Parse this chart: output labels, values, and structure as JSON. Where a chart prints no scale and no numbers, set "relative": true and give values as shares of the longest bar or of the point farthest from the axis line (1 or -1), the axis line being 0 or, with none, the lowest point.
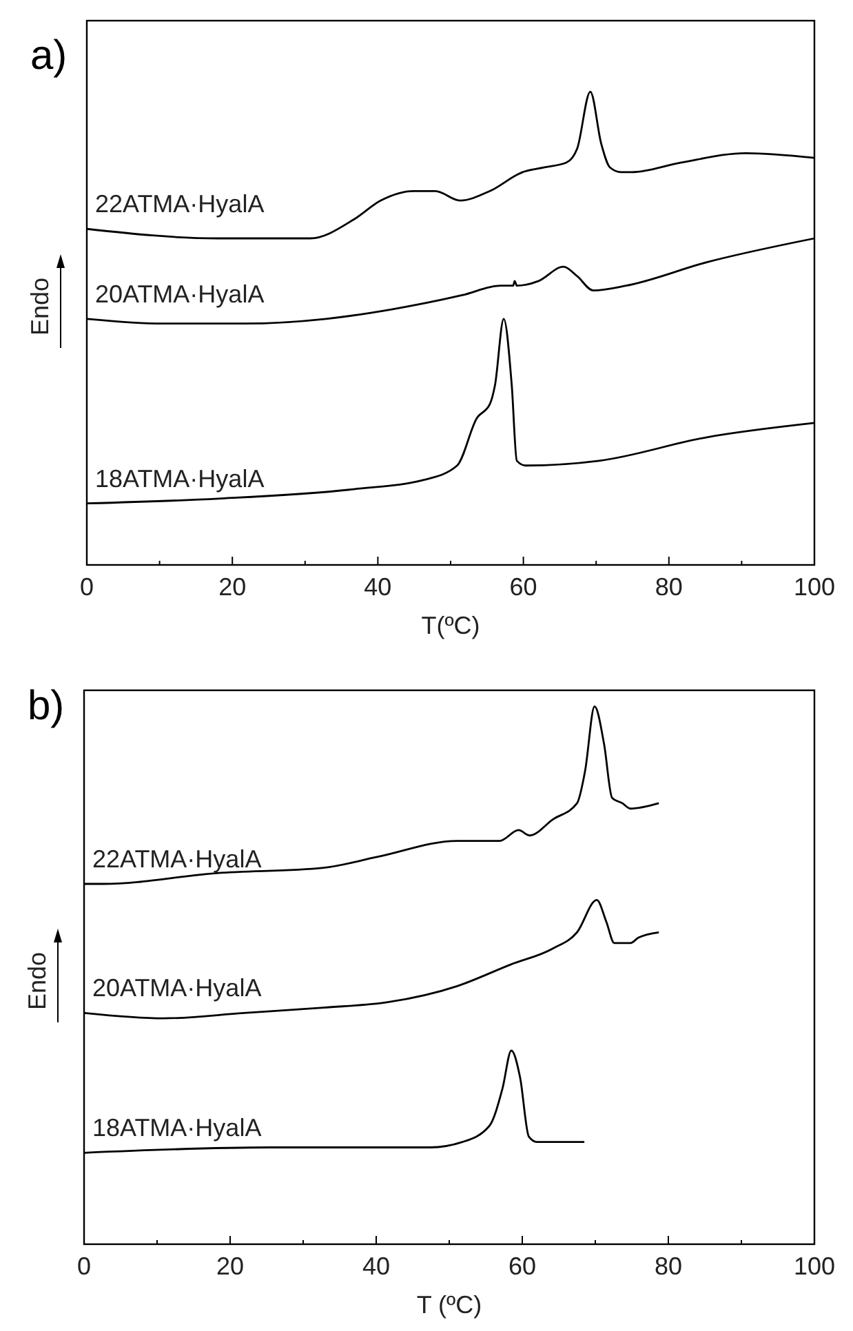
{
  "chart_data": [
    {
      "type": "line",
      "title": "a)",
      "xlabel": "T(ºC)",
      "ylabel": "Endo",
      "relative": true,
      "xlim": [
        0,
        100
      ],
      "xticks": [
        0,
        {
          "value": 10,
          "label": null
        },
        20,
        {
          "value": 30,
          "label": null
        },
        40,
        {
          "value": 50,
          "label": null
        },
        60,
        {
          "value": 70,
          "label": null
        },
        80,
        {
          "value": 90,
          "label": null
        },
        100
      ],
      "series": [
        {
          "name": "22ATMA·HyalA",
          "color": "#000000",
          "x": [
            0,
            18,
            30.7,
            36.7,
            40.4,
            44.9,
            47.9,
            51.3,
            55.4,
            59.9,
            62.9,
            65.9,
            67.4,
            69.2,
            70.7,
            71.9,
            73.4,
            74.9,
            81.6,
            90.6,
            100
          ],
          "values": [
            0.71,
            0.69,
            0.69,
            0.73,
            0.77,
            0.79,
            0.79,
            0.77,
            0.79,
            0.83,
            0.84,
            0.85,
            0.88,
            1.0,
            0.89,
            0.84,
            0.83,
            0.83,
            0.85,
            0.87,
            0.86
          ]
        },
        {
          "name": "20ATMA·HyalA",
          "color": "#000000",
          "x": [
            0,
            10.5,
            21.7,
            32.9,
            41.9,
            51.6,
            56.9,
            58.6,
            58.8,
            59.1,
            62.1,
            65.5,
            67.4,
            69.6,
            74.1,
            85.3,
            100
          ],
          "values": [
            0.52,
            0.51,
            0.51,
            0.52,
            0.54,
            0.57,
            0.59,
            0.59,
            0.6,
            0.59,
            0.6,
            0.63,
            0.61,
            0.58,
            0.59,
            0.64,
            0.69
          ]
        },
        {
          "name": "18ATMA·HyalA",
          "color": "#000000",
          "x": [
            0,
            18,
            36.7,
            46.4,
            50.9,
            53.6,
            55.4,
            56.1,
            57.3,
            58.4,
            59.1,
            60.3,
            70.4,
            85.3,
            100
          ],
          "values": [
            0.13,
            0.14,
            0.16,
            0.18,
            0.21,
            0.31,
            0.34,
            0.38,
            0.52,
            0.38,
            0.22,
            0.21,
            0.22,
            0.27,
            0.3
          ]
        }
      ]
    },
    {
      "type": "line",
      "title": "b)",
      "xlabel": "T (ºC)",
      "ylabel": "Endo",
      "relative": true,
      "xlim": [
        0,
        100
      ],
      "xticks": [
        0,
        {
          "value": 10,
          "label": null
        },
        20,
        {
          "value": 30,
          "label": null
        },
        40,
        {
          "value": 50,
          "label": null
        },
        60,
        {
          "value": 70,
          "label": null
        },
        80,
        {
          "value": 90,
          "label": null
        },
        100
      ],
      "series": [
        {
          "name": "22ATMA·HyalA",
          "color": "#000000",
          "x": [
            0,
            2.6,
            18.2,
            32.8,
            40.1,
            51.1,
            56.9,
            59.5,
            61,
            64.2,
            67.5,
            68.6,
            69.9,
            71.2,
            72.3,
            73.7,
            74.8,
            78.7
          ],
          "values": [
            0.67,
            0.67,
            0.69,
            0.7,
            0.72,
            0.75,
            0.75,
            0.77,
            0.76,
            0.79,
            0.82,
            0.88,
            1.0,
            0.93,
            0.83,
            0.82,
            0.81,
            0.82
          ]
        },
        {
          "name": "20ATMA·HyalA",
          "color": "#000000",
          "x": [
            0,
            10.9,
            21.9,
            32.8,
            41.6,
            51.1,
            58.4,
            64.2,
            67.5,
            70.2,
            71.5,
            72.6,
            74.8,
            75.9,
            78.7
          ],
          "values": [
            0.43,
            0.42,
            0.43,
            0.44,
            0.45,
            0.48,
            0.52,
            0.55,
            0.58,
            0.64,
            0.6,
            0.56,
            0.56,
            0.57,
            0.58
          ]
        },
        {
          "name": "18ATMA·HyalA",
          "color": "#000000",
          "x": [
            0,
            25.5,
            47.4,
            51.8,
            55.5,
            57.3,
            58.5,
            59.7,
            60.9,
            62,
            68.5
          ],
          "values": [
            0.17,
            0.18,
            0.18,
            0.19,
            0.22,
            0.29,
            0.36,
            0.31,
            0.2,
            0.19,
            0.19
          ]
        }
      ]
    }
  ]
}
